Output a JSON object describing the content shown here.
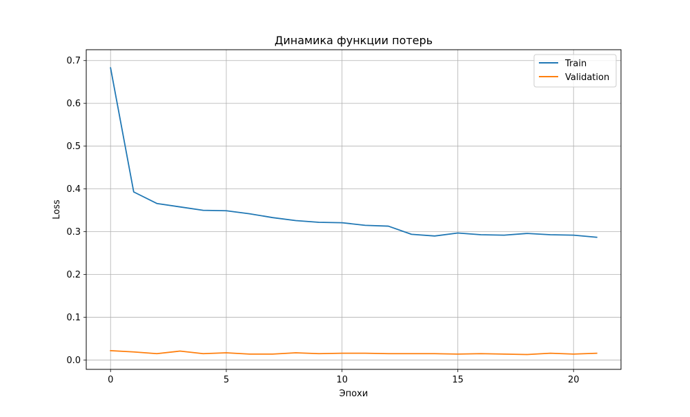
{
  "chart_data": {
    "type": "line",
    "title": "Динамика функции потерь",
    "xlabel": "Эпохи",
    "ylabel": "Loss",
    "x": [
      0,
      1,
      2,
      3,
      4,
      5,
      6,
      7,
      8,
      9,
      10,
      11,
      12,
      13,
      14,
      15,
      16,
      17,
      18,
      19,
      20,
      21
    ],
    "xlim": [
      -1.05,
      22.05
    ],
    "ylim": [
      -0.0217,
      0.7254
    ],
    "xticks": [
      0,
      5,
      10,
      15,
      20
    ],
    "yticks": [
      0.0,
      0.1,
      0.2,
      0.3,
      0.4,
      0.5,
      0.6,
      0.7
    ],
    "ytick_labels": [
      "0.0",
      "0.1",
      "0.2",
      "0.3",
      "0.4",
      "0.5",
      "0.6",
      "0.7"
    ],
    "grid": true,
    "legend_position": "top-right",
    "series": [
      {
        "name": "Train",
        "color": "#1f77b4",
        "values": [
          0.683,
          0.393,
          0.366,
          0.358,
          0.35,
          0.349,
          0.342,
          0.333,
          0.326,
          0.322,
          0.321,
          0.315,
          0.313,
          0.294,
          0.29,
          0.297,
          0.293,
          0.292,
          0.296,
          0.293,
          0.292,
          0.287
        ]
      },
      {
        "name": "Validation",
        "color": "#ff7f0e",
        "values": [
          0.022,
          0.019,
          0.015,
          0.021,
          0.015,
          0.017,
          0.014,
          0.014,
          0.017,
          0.015,
          0.016,
          0.016,
          0.015,
          0.015,
          0.015,
          0.014,
          0.015,
          0.014,
          0.013,
          0.016,
          0.014,
          0.016
        ]
      }
    ]
  }
}
